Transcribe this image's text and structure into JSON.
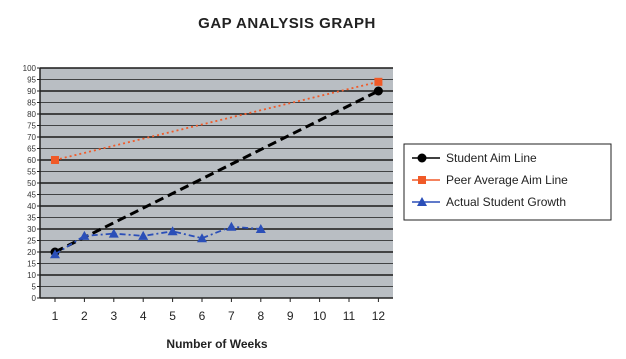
{
  "chart_data": {
    "type": "line",
    "title": "GAP ANALYSIS GRAPH",
    "xlabel": "Number of Weeks",
    "ylabel": "",
    "x": [
      1,
      2,
      3,
      4,
      5,
      6,
      7,
      8,
      9,
      10,
      11,
      12
    ],
    "ylim": [
      0,
      100
    ],
    "yticks": [
      0,
      5,
      10,
      15,
      20,
      25,
      30,
      35,
      40,
      45,
      50,
      55,
      60,
      65,
      70,
      75,
      80,
      85,
      90,
      95,
      100
    ],
    "grid": true,
    "plot_background": "#b9bec3",
    "legend_position": "right",
    "series": [
      {
        "name": "Student Aim Line",
        "color": "#000000",
        "style": "dashed",
        "marker": "circle",
        "points": [
          [
            1,
            20
          ],
          [
            12,
            90
          ]
        ]
      },
      {
        "name": "Peer Average Aim Line",
        "color": "#f05a28",
        "style": "dotted",
        "marker": "square",
        "points": [
          [
            1,
            60
          ],
          [
            12,
            94
          ]
        ]
      },
      {
        "name": "Actual Student Growth",
        "color": "#2b4fb8",
        "style": "dash-dot",
        "marker": "triangle",
        "points": [
          [
            1,
            19
          ],
          [
            2,
            27
          ],
          [
            3,
            28
          ],
          [
            4,
            27
          ],
          [
            5,
            29
          ],
          [
            6,
            26
          ],
          [
            7,
            31
          ],
          [
            8,
            30
          ]
        ]
      }
    ]
  }
}
